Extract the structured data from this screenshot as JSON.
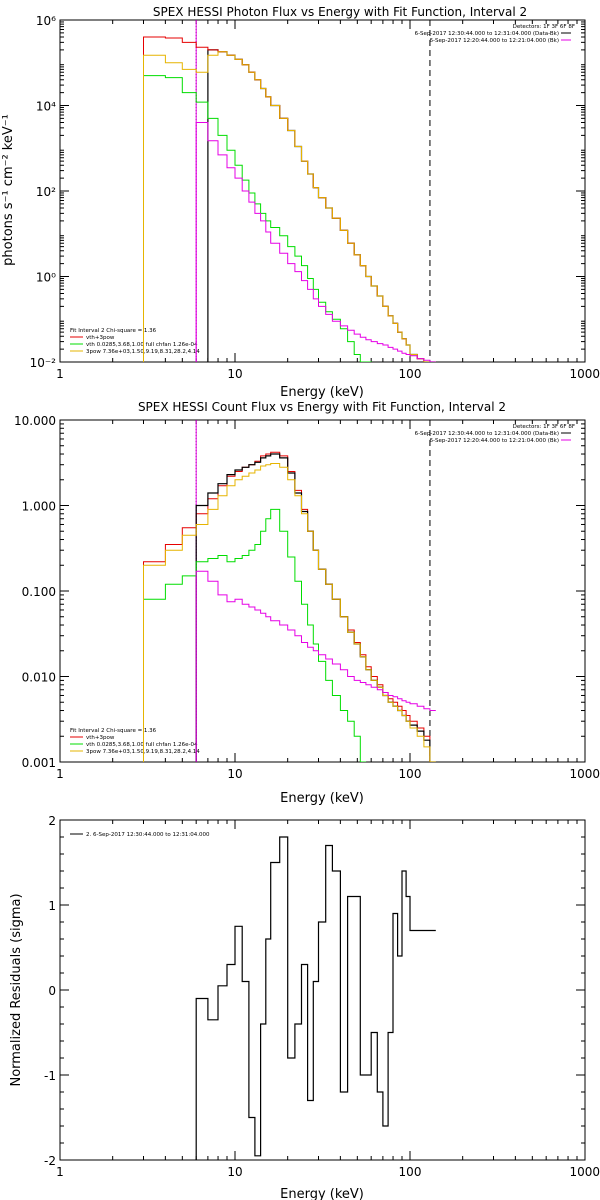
{
  "chart_data": [
    {
      "type": "line",
      "title": "SPEX HESSI Photon Flux vs Energy with Fit Function, Interval 2",
      "xlabel": "Energy (keV)",
      "ylabel": "photons s⁻¹ cm⁻² keV⁻¹",
      "xscale": "log",
      "yscale": "log",
      "xlim": [
        1,
        1000
      ],
      "ylim": [
        0.01,
        1000000
      ],
      "x_ticks": [
        "1",
        "10",
        "100",
        "1000"
      ],
      "y_ticks": [
        "10⁻²",
        "10⁰",
        "10²",
        "10⁴",
        "10⁶"
      ],
      "y_tick_values": [
        0.01,
        1,
        100,
        10000,
        1000000
      ],
      "grid": false,
      "header_lines": [
        "Detectors: 1F 3F 6F 8F",
        "6-Sep-2017 12:30:44.000 to 12:31:04.000 (Data-Bk)",
        "6-Sep-2017 12:20:44.000 to 12:21:04.000 (Bk)"
      ],
      "header_colors": [
        "",
        "#000000",
        "#e600e6"
      ],
      "legend_lines": [
        "Fit Interval 2   Chi-square = 1.36",
        "vth+3pow",
        "vth 0.0285,3.68,1.00  full chfan 1.26e-04",
        "3pow 7.36e+03,1.50,9.19,8.31,28.2,4.14"
      ],
      "legend_colors": [
        "",
        "#e60000",
        "#00dd00",
        "#e6b400"
      ],
      "vlines": [
        {
          "x": 6.0,
          "style": "dotted",
          "color": "#000000"
        },
        {
          "x": 6.0,
          "style": "solid",
          "color": "#e600e6"
        },
        {
          "x": 130,
          "style": "dashed",
          "color": "#000000"
        }
      ],
      "series": [
        {
          "color": "#000000",
          "width": 1.2,
          "x": [
            3,
            4,
            5,
            6,
            7,
            8,
            9,
            10,
            11,
            12,
            13,
            14,
            15,
            16,
            18,
            20,
            22,
            24,
            26,
            28,
            30,
            33,
            36,
            40,
            44,
            48,
            52,
            56,
            60,
            65,
            70,
            75,
            80,
            85,
            90,
            95,
            100,
            110,
            120,
            130
          ],
          "y": [
            null,
            null,
            null,
            null,
            200000,
            180000,
            150000,
            120000,
            90000,
            60000,
            40000,
            25000,
            16000,
            10000,
            5000,
            2600,
            1100,
            500,
            250,
            120,
            70,
            40,
            23,
            12,
            6,
            3.2,
            1.8,
            1.0,
            0.6,
            0.35,
            0.2,
            0.12,
            0.08,
            0.05,
            0.035,
            0.025,
            0.015,
            0.012,
            0.01,
            0.01
          ]
        },
        {
          "color": "#e60000",
          "width": 1,
          "x": [
            3,
            4,
            5,
            6,
            7,
            8,
            9,
            10,
            11,
            12,
            13,
            14,
            15,
            16,
            18,
            20,
            22,
            24,
            26,
            28,
            30,
            33,
            36,
            40,
            44,
            48,
            52,
            56,
            60,
            65,
            70,
            75,
            80,
            85,
            90,
            95,
            100,
            110,
            120,
            130
          ],
          "y": [
            400000,
            380000,
            300000,
            230000,
            200000,
            180000,
            150000,
            120000,
            90000,
            60000,
            40000,
            25000,
            16000,
            10000,
            5000,
            2600,
            1100,
            500,
            250,
            120,
            70,
            40,
            23,
            12,
            6,
            3.2,
            1.8,
            1.0,
            0.6,
            0.35,
            0.2,
            0.12,
            0.08,
            0.05,
            0.035,
            0.025,
            0.015,
            0.012,
            0.01,
            0.01
          ]
        },
        {
          "color": "#00dd00",
          "width": 1,
          "x": [
            3,
            4,
            5,
            6,
            7,
            8,
            9,
            10,
            11,
            12,
            13,
            14,
            15,
            16,
            18,
            20,
            22,
            24,
            26,
            28,
            30,
            33,
            36,
            40,
            44,
            48,
            52,
            56
          ],
          "y": [
            50000,
            45000,
            20000,
            12000,
            5000,
            2000,
            900,
            400,
            180,
            90,
            50,
            30,
            20,
            14,
            9,
            5,
            3,
            1.8,
            0.9,
            0.5,
            0.25,
            0.15,
            0.1,
            0.06,
            0.03,
            0.015,
            0.01,
            0.01
          ]
        },
        {
          "color": "#e6b400",
          "width": 1,
          "x": [
            3,
            4,
            5,
            6,
            7,
            8,
            9,
            10,
            11,
            12,
            13,
            14,
            15,
            16,
            18,
            20,
            22,
            24,
            26,
            28,
            30,
            33,
            36,
            40,
            44,
            48,
            52,
            56,
            60,
            65,
            70,
            75,
            80,
            85,
            90,
            95,
            100,
            110,
            120,
            130
          ],
          "y": [
            150000,
            100000,
            70000,
            60000,
            150000,
            180000,
            150000,
            120000,
            90000,
            60000,
            40000,
            25000,
            16000,
            10000,
            5000,
            2600,
            1100,
            500,
            250,
            120,
            70,
            40,
            23,
            12,
            6,
            3.2,
            1.8,
            1.0,
            0.6,
            0.35,
            0.2,
            0.12,
            0.08,
            0.05,
            0.035,
            0.025,
            0.015,
            0.012,
            0.01,
            0.01
          ]
        },
        {
          "color": "#e600e6",
          "width": 1,
          "x": [
            6,
            7,
            8,
            9,
            10,
            11,
            12,
            13,
            14,
            15,
            16,
            18,
            20,
            22,
            24,
            26,
            28,
            30,
            33,
            36,
            40,
            44,
            48,
            52,
            56,
            60,
            65,
            70,
            75,
            80,
            85,
            90,
            95,
            100,
            110,
            120,
            130
          ],
          "y": [
            4000,
            1500,
            700,
            350,
            200,
            100,
            55,
            30,
            20,
            11,
            6,
            3.5,
            2,
            1.3,
            0.8,
            0.5,
            0.3,
            0.2,
            0.13,
            0.09,
            0.07,
            0.055,
            0.045,
            0.038,
            0.033,
            0.03,
            0.027,
            0.025,
            0.022,
            0.02,
            0.018,
            0.016,
            0.015,
            0.014,
            0.012,
            0.011,
            0.01
          ]
        }
      ]
    },
    {
      "type": "line",
      "title": "SPEX HESSI Count Flux vs Energy with Fit Function, Interval 2",
      "xlabel": "Energy (keV)",
      "ylabel": "",
      "xscale": "log",
      "yscale": "log",
      "xlim": [
        1,
        1000
      ],
      "ylim": [
        0.001,
        10
      ],
      "x_ticks": [
        "1",
        "10",
        "100",
        "1000"
      ],
      "y_ticks": [
        "0.001",
        "0.010",
        "0.100",
        "1.000",
        "10.000"
      ],
      "y_tick_values": [
        0.001,
        0.01,
        0.1,
        1,
        10
      ],
      "grid": false,
      "header_lines": [
        "Detectors: 1F 3F 6F 8F",
        "6-Sep-2017 12:30:44.000 to 12:31:04.000 (Data-Bk)",
        "6-Sep-2017 12:20:44.000 to 12:21:04.000 (Bk)"
      ],
      "header_colors": [
        "",
        "#000000",
        "#e600e6"
      ],
      "legend_lines": [
        "Fit Interval 2   Chi-square = 1.36",
        "vth+3pow",
        "vth 0.0285,3.68,1.00  full chfan 1.26e-04",
        "3pow 7.36e+03,1.50,9.19,8.31,28.2,4.14"
      ],
      "legend_colors": [
        "",
        "#e60000",
        "#00dd00",
        "#e6b400"
      ],
      "vlines": [
        {
          "x": 6.0,
          "style": "dotted",
          "color": "#000000"
        },
        {
          "x": 6.0,
          "style": "solid",
          "color": "#e600e6"
        },
        {
          "x": 130,
          "style": "dashed",
          "color": "#000000"
        }
      ],
      "series": [
        {
          "color": "#e60000",
          "width": 1,
          "x": [
            3,
            4,
            5,
            6,
            7,
            8,
            9,
            10,
            11,
            12,
            13,
            14,
            15,
            16,
            18,
            20,
            22,
            24,
            26,
            28,
            30,
            33,
            36,
            40,
            44,
            48,
            52,
            56,
            60,
            65,
            70,
            75,
            80,
            85,
            90,
            95,
            100,
            110,
            120,
            130
          ],
          "y": [
            0.22,
            0.35,
            0.55,
            0.8,
            1.2,
            1.7,
            2.2,
            2.5,
            2.8,
            3.0,
            3.3,
            3.8,
            4.0,
            4.2,
            3.8,
            2.5,
            1.5,
            0.9,
            0.5,
            0.3,
            0.18,
            0.12,
            0.08,
            0.05,
            0.035,
            0.025,
            0.018,
            0.013,
            0.01,
            0.008,
            0.0065,
            0.0055,
            0.005,
            0.0045,
            0.004,
            0.0035,
            0.003,
            0.0025,
            0.002,
            0.001
          ]
        },
        {
          "color": "#000000",
          "width": 1.2,
          "x": [
            3,
            4,
            5,
            6,
            7,
            8,
            9,
            10,
            11,
            12,
            13,
            14,
            15,
            16,
            18,
            20,
            22,
            24,
            26,
            28,
            30,
            33,
            36,
            40,
            44,
            48,
            52,
            56,
            60,
            65,
            70,
            75,
            80,
            85,
            90,
            95,
            100,
            110,
            120,
            130
          ],
          "y": [
            null,
            null,
            null,
            1.0,
            1.4,
            1.8,
            2.3,
            2.6,
            2.8,
            3.0,
            3.2,
            3.6,
            3.8,
            4.0,
            3.6,
            2.4,
            1.4,
            0.85,
            0.5,
            0.3,
            0.18,
            0.12,
            0.08,
            0.05,
            0.033,
            0.024,
            0.017,
            0.012,
            0.009,
            0.0075,
            0.006,
            0.005,
            0.0045,
            0.004,
            0.0035,
            0.003,
            0.0027,
            0.0023,
            0.0018,
            0.001
          ]
        },
        {
          "color": "#00dd00",
          "width": 1,
          "x": [
            3,
            4,
            5,
            6,
            7,
            8,
            9,
            10,
            11,
            12,
            13,
            14,
            15,
            16,
            18,
            20,
            22,
            24,
            26,
            28,
            30,
            33,
            36,
            40,
            44,
            48,
            52
          ],
          "y": [
            0.08,
            0.12,
            0.15,
            0.22,
            0.24,
            0.26,
            0.22,
            0.24,
            0.26,
            0.3,
            0.35,
            0.5,
            0.7,
            0.9,
            0.5,
            0.25,
            0.13,
            0.07,
            0.04,
            0.024,
            0.015,
            0.009,
            0.006,
            0.004,
            0.003,
            0.002,
            0.001
          ]
        },
        {
          "color": "#e6b400",
          "width": 1,
          "x": [
            3,
            4,
            5,
            6,
            7,
            8,
            9,
            10,
            11,
            12,
            13,
            14,
            15,
            16,
            18,
            20,
            22,
            24,
            26,
            28,
            30,
            33,
            36,
            40,
            44,
            48,
            52,
            56,
            60,
            65,
            70,
            75,
            80,
            85,
            90,
            95,
            100,
            110,
            120,
            130
          ],
          "y": [
            0.2,
            0.3,
            0.45,
            0.6,
            0.9,
            1.3,
            1.7,
            2.0,
            2.2,
            2.4,
            2.6,
            2.9,
            3.0,
            3.1,
            2.8,
            2.0,
            1.3,
            0.8,
            0.5,
            0.3,
            0.18,
            0.12,
            0.08,
            0.05,
            0.033,
            0.024,
            0.017,
            0.012,
            0.009,
            0.0075,
            0.006,
            0.005,
            0.0045,
            0.004,
            0.0035,
            0.003,
            0.0025,
            0.002,
            0.0015,
            0.001
          ]
        },
        {
          "color": "#e600e6",
          "width": 1,
          "x": [
            6,
            7,
            8,
            9,
            10,
            11,
            12,
            13,
            14,
            15,
            16,
            18,
            20,
            22,
            24,
            26,
            28,
            30,
            33,
            36,
            40,
            44,
            48,
            52,
            56,
            60,
            65,
            70,
            75,
            80,
            85,
            90,
            95,
            100,
            110,
            120,
            130
          ],
          "y": [
            0.17,
            0.13,
            0.09,
            0.075,
            0.08,
            0.07,
            0.065,
            0.06,
            0.055,
            0.05,
            0.045,
            0.04,
            0.035,
            0.03,
            0.025,
            0.022,
            0.02,
            0.018,
            0.016,
            0.014,
            0.012,
            0.01,
            0.009,
            0.0085,
            0.008,
            0.0075,
            0.007,
            0.0065,
            0.006,
            0.0058,
            0.0055,
            0.0052,
            0.005,
            0.0048,
            0.0045,
            0.0042,
            0.004
          ]
        }
      ]
    },
    {
      "type": "line",
      "title": "",
      "xlabel": "Energy (keV)",
      "ylabel": "Normalized Residuals (sigma)",
      "xscale": "log",
      "yscale": "linear",
      "xlim": [
        1,
        1000
      ],
      "ylim": [
        -2,
        2
      ],
      "x_ticks": [
        "1",
        "10",
        "100",
        "1000"
      ],
      "y_ticks": [
        "-2",
        "-1",
        "0",
        "1",
        "2"
      ],
      "y_tick_values": [
        -2,
        -1,
        0,
        1,
        2
      ],
      "grid": false,
      "legend_lines": [
        "2.  6-Sep-2017 12:30:44.000 to 12:31:04.000"
      ],
      "legend_colors": [
        "#000000"
      ],
      "series": [
        {
          "color": "#000000",
          "width": 1.2,
          "x": [
            6,
            7,
            8,
            9,
            10,
            11,
            12,
            13,
            14,
            15,
            16,
            18,
            20,
            22,
            24,
            26,
            28,
            30,
            33,
            36,
            40,
            44,
            48,
            52,
            56,
            60,
            65,
            70,
            75,
            80,
            85,
            90,
            95,
            100,
            110,
            120,
            130
          ],
          "y": [
            -0.1,
            -0.35,
            0.05,
            0.3,
            0.75,
            0.1,
            -1.5,
            -1.95,
            -0.4,
            0.6,
            1.5,
            1.8,
            -0.8,
            -0.4,
            0.3,
            -1.3,
            0.1,
            0.8,
            1.7,
            1.4,
            -1.2,
            1.1,
            1.1,
            -1.0,
            -1.0,
            -0.5,
            -1.2,
            -1.6,
            -0.5,
            0.9,
            0.4,
            1.4,
            1.1,
            0.7,
            0.7,
            0.7,
            0.7
          ]
        }
      ]
    }
  ]
}
